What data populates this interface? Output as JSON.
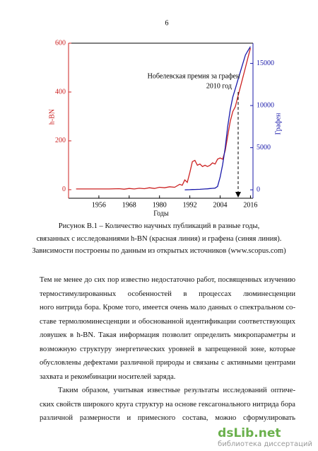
{
  "page_number": "6",
  "chart_data": {
    "type": "line",
    "xlabel": "Годы",
    "ylabel": "h-BN",
    "y2label": "Графен",
    "annotation": [
      "Нобелевская премия за графен",
      "2010 год"
    ],
    "x": [
      1947,
      1952,
      1956,
      1960,
      1964,
      1966,
      1968,
      1970,
      1972,
      1974,
      1976,
      1978,
      1980,
      1982,
      1984,
      1986,
      1988,
      1989,
      1990,
      1991,
      1992,
      1993,
      1994,
      1995,
      1996,
      1997,
      1998,
      1999,
      2000,
      2001,
      2002,
      2003,
      2004,
      2005,
      2006,
      2007,
      2008,
      2009,
      2010,
      2011,
      2012,
      2013,
      2014,
      2015,
      2016
    ],
    "series": [
      {
        "name": "h-BN",
        "color": "#cc2222",
        "values": [
          3,
          3,
          3,
          3,
          4,
          2,
          5,
          3,
          6,
          4,
          8,
          5,
          10,
          8,
          12,
          10,
          22,
          18,
          40,
          30,
          70,
          115,
          120,
          100,
          105,
          95,
          100,
          95,
          100,
          110,
          105,
          125,
          130,
          125,
          160,
          220,
          280,
          320,
          340,
          380,
          420,
          460,
          500,
          540,
          580
        ]
      },
      {
        "name": "Графен",
        "color": "#1a1aaa",
        "axis": "y2",
        "values": [
          null,
          null,
          null,
          null,
          null,
          null,
          null,
          null,
          null,
          null,
          null,
          null,
          null,
          null,
          null,
          null,
          null,
          null,
          0,
          10,
          20,
          30,
          40,
          50,
          60,
          80,
          100,
          120,
          150,
          180,
          200,
          400,
          1500,
          3000,
          5000,
          7500,
          9500,
          11000,
          12000,
          13000,
          14000,
          15000,
          16000,
          16500,
          17000
        ]
      }
    ],
    "xlim": [
      1944,
      2017
    ],
    "xticks": [
      1956,
      1968,
      1980,
      1992,
      2004,
      2016
    ],
    "ylim": [
      -35,
      600
    ],
    "yticks": [
      0,
      200,
      400,
      600
    ],
    "y2lim": [
      -1000,
      17400
    ],
    "y2ticks": [
      0,
      5000,
      10000,
      15000
    ]
  },
  "caption": [
    "Рисунок В.1 – Количество научных публикаций в разные годы,",
    "связанных с исследованиями h-BN (красная линия) и графена (синяя линия).",
    "Зависимости построены по данным из открытых источников (www.scopus.com)"
  ],
  "paragraphs": [
    [
      "Тем не менее до сих пор известно недостаточно работ, посвященных изучению",
      "термостимулированных особенностей в процессах люминесценции гексагональ-",
      "ного нитрида бора. Кроме того, имеется очень мало данных о спектральном со-",
      "ставе термолюминесценции и обоснованной идентификации соответствующих",
      "ловушек в h-BN. Такая информация позволит определить микропараметры и",
      "возможную структуру энергетических уровней в запрещенной зоне, которые",
      "обусловлены дефектами различной природы и связаны с активными центрами",
      "захвата и рекомбинации носителей заряда."
    ],
    [
      "Таким образом, учитывая известные результаты исследований оптиче-",
      "ских свойств широкого круга структур на основе гексагонального нитрида бора",
      "различной размерности и примесного состава, можно сформулировать вопросы,"
    ]
  ],
  "watermark": {
    "brand": "dsLib.net",
    "tagline": "библиотека диссертаций"
  }
}
